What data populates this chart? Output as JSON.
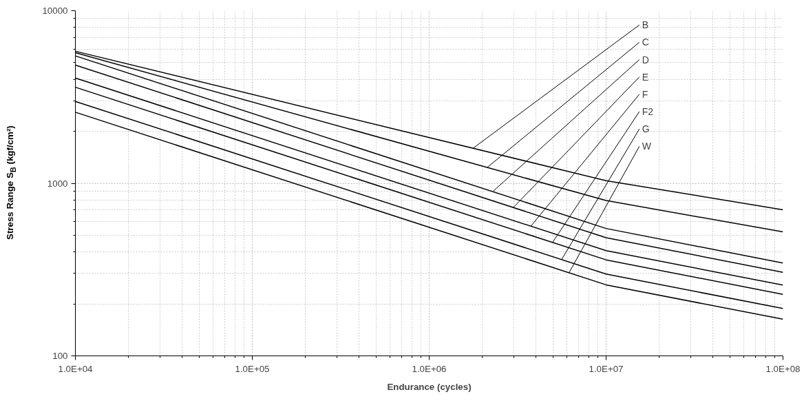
{
  "chart_data": {
    "type": "line",
    "xlabel": "Endurance (cycles)",
    "ylabel": "Stress Range S$_{B}$ (kgf/cm²)",
    "log": "xy",
    "grid": true,
    "marker": "none",
    "line_style": "solid",
    "xlim": [
      10000,
      100000000
    ],
    "ylim": [
      100,
      10000
    ],
    "xticks": [
      {
        "value": 10000,
        "label": "1.0E+04"
      },
      {
        "value": 100000,
        "label": "1.0E+05"
      },
      {
        "value": 1000000,
        "label": "1.0E+06"
      },
      {
        "value": 10000000,
        "label": "1.0E+07"
      },
      {
        "value": 100000000,
        "label": "1.0E+08"
      }
    ],
    "yticks": [
      100,
      1000,
      10000
    ],
    "x": [
      10000,
      10000000,
      100000000
    ],
    "series": [
      {
        "color": "#000000",
        "values": [
          5820,
          1035,
          702
        ]
      },
      {
        "color": "#000000",
        "values": [
          5710,
          794,
          523
        ]
      },
      {
        "color": "#000000",
        "values": [
          5470,
          547,
          345
        ]
      },
      {
        "color": "#000000",
        "values": [
          4840,
          484,
          305
        ]
      },
      {
        "color": "#000000",
        "values": [
          4070,
          407,
          257
        ]
      },
      {
        "color": "#000000",
        "values": [
          3600,
          360,
          227
        ]
      },
      {
        "color": "#000000",
        "values": [
          2980,
          298,
          188
        ]
      },
      {
        "color": "#000000",
        "values": [
          2580,
          258,
          163
        ]
      }
    ],
    "annotations": [
      {
        "text": "B",
        "x": 1770000,
        "y": 1596
      },
      {
        "text": "C",
        "x": 2130000,
        "y": 1236
      },
      {
        "text": "D",
        "x": 2300000,
        "y": 900
      },
      {
        "text": "E",
        "x": 2990000,
        "y": 724
      },
      {
        "text": "F",
        "x": 3760000,
        "y": 565
      },
      {
        "text": "F2",
        "x": 4980000,
        "y": 454
      },
      {
        "text": "G",
        "x": 5600000,
        "y": 361
      },
      {
        "text": "W",
        "x": 6170000,
        "y": 303
      }
    ]
  }
}
